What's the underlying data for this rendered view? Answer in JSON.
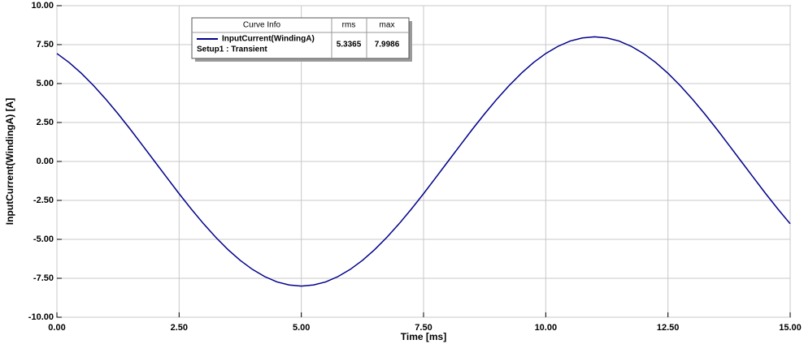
{
  "chart_data": {
    "type": "line",
    "x_label": "Time [ms]",
    "y_label": "InputCurrent(WindingA) [A]",
    "x": [
      0,
      0.25,
      0.5,
      0.75,
      1,
      1.25,
      1.5,
      1.75,
      2,
      2.25,
      2.5,
      2.75,
      3,
      3.25,
      3.5,
      3.75,
      4,
      4.25,
      4.5,
      4.75,
      5,
      5.25,
      5.5,
      5.75,
      6,
      6.25,
      6.5,
      6.75,
      7,
      7.25,
      7.5,
      7.75,
      8,
      8.25,
      8.5,
      8.75,
      9,
      9.25,
      9.5,
      9.75,
      10,
      10.25,
      10.5,
      10.75,
      11,
      11.25,
      11.5,
      11.75,
      12,
      12.25,
      12.5,
      12.75,
      13,
      13.25,
      13.5,
      13.75,
      14,
      14.25,
      14.5,
      14.75,
      15
    ],
    "series": [
      {
        "name": "InputCurrent(WindingA)",
        "color": "#00008b",
        "values": [
          6.93,
          6.35,
          5.66,
          4.87,
          4,
          3.06,
          2.07,
          1.04,
          0,
          -1.04,
          -2.07,
          -3.06,
          -4,
          -4.87,
          -5.66,
          -6.35,
          -6.93,
          -7.39,
          -7.73,
          -7.93,
          -8,
          -7.93,
          -7.73,
          -7.39,
          -6.93,
          -6.35,
          -5.66,
          -4.87,
          -4,
          -3.06,
          -2.07,
          -1.04,
          0,
          1.04,
          2.07,
          3.06,
          4,
          4.87,
          5.66,
          6.35,
          6.93,
          7.39,
          7.73,
          7.93,
          8,
          7.93,
          7.73,
          7.39,
          6.93,
          6.35,
          5.66,
          4.87,
          4,
          3.06,
          2.07,
          1.04,
          0,
          -1.04,
          -2.07,
          -3.06,
          -4
        ]
      }
    ],
    "xlim": [
      0,
      15
    ],
    "ylim": [
      -10,
      10
    ],
    "xticks": [
      {
        "value": 0,
        "label": "0.00"
      },
      {
        "value": 2.5,
        "label": "2.50"
      },
      {
        "value": 5,
        "label": "5.00"
      },
      {
        "value": 7.5,
        "label": "7.50"
      },
      {
        "value": 10,
        "label": "10.00"
      },
      {
        "value": 12.5,
        "label": "12.50"
      },
      {
        "value": 15,
        "label": "15.00"
      }
    ],
    "yticks": [
      {
        "value": -10,
        "label": "-10.00"
      },
      {
        "value": -7.5,
        "label": "-7.50"
      },
      {
        "value": -5,
        "label": "-5.00"
      },
      {
        "value": -2.5,
        "label": "-2.50"
      },
      {
        "value": 0,
        "label": "0.00"
      },
      {
        "value": 2.5,
        "label": "2.50"
      },
      {
        "value": 5,
        "label": "5.00"
      },
      {
        "value": 7.5,
        "label": "7.50"
      },
      {
        "value": 10,
        "label": "10.00"
      }
    ],
    "grid": true,
    "legend": {
      "headers": [
        "Curve Info",
        "rms",
        "max"
      ],
      "setup": "Setup1 : Transient",
      "rms": 5.3365,
      "max": 7.9986
    }
  }
}
